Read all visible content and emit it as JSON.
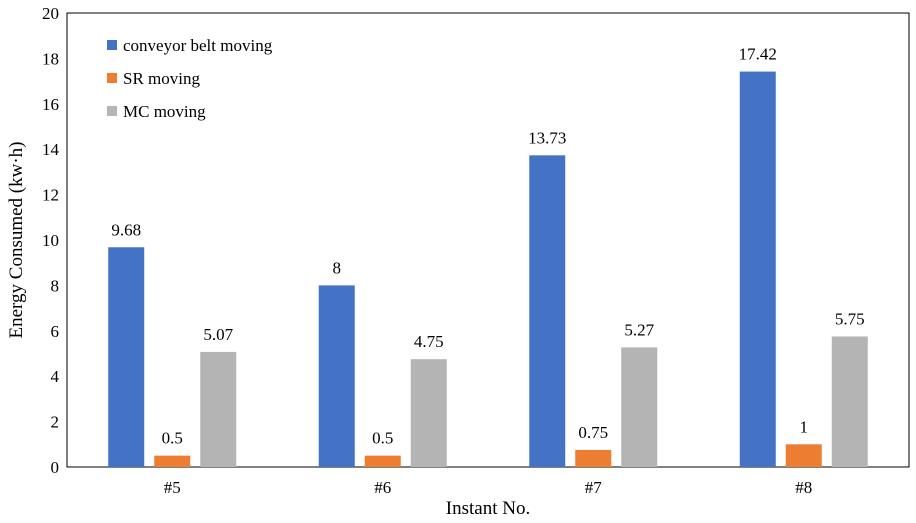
{
  "chart_data": {
    "type": "bar",
    "categories": [
      "#5",
      "#6",
      "#7",
      "#8"
    ],
    "series": [
      {
        "name": "conveyor belt moving",
        "color": "#4472C4",
        "values": [
          9.68,
          8,
          13.73,
          17.42
        ]
      },
      {
        "name": "SR moving",
        "color": "#ED7D31",
        "values": [
          0.5,
          0.5,
          0.75,
          1
        ]
      },
      {
        "name": "MC moving",
        "color": "#B4B4B4",
        "values": [
          5.07,
          4.75,
          5.27,
          5.75
        ]
      }
    ],
    "data_labels": [
      [
        "9.68",
        "8",
        "13.73",
        "17.42"
      ],
      [
        "0.5",
        "0.5",
        "0.75",
        "1"
      ],
      [
        "5.07",
        "4.75",
        "5.27",
        "5.75"
      ]
    ],
    "xlabel": "Instant No.",
    "ylabel": "Energy Consumed (kw·h)",
    "ylim": [
      0,
      20
    ],
    "yticks": [
      "0",
      "2",
      "4",
      "6",
      "8",
      "10",
      "12",
      "14",
      "16",
      "18",
      "20"
    ],
    "grid": false,
    "legend_position": "top-left"
  }
}
